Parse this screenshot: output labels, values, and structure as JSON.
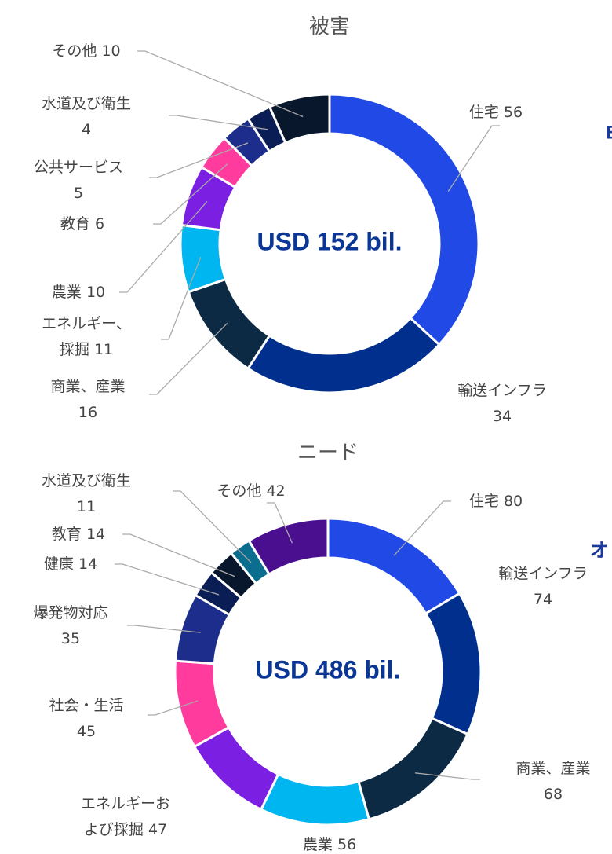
{
  "chart_data": [
    {
      "type": "donut",
      "title": "被害",
      "center_label": "USD 152 bil.",
      "categories": [
        "住宅",
        "輸送インフラ",
        "商業、産業",
        "エネルギー、採掘",
        "農業",
        "教育",
        "公共サービス",
        "水道及び衛生",
        "その他"
      ],
      "values": [
        56,
        34,
        16,
        11,
        10,
        6,
        5,
        4,
        10
      ],
      "colors": [
        "#2149e6",
        "#002f8e",
        "#0c2a44",
        "#00b6f0",
        "#7b1fe3",
        "#ff3b9e",
        "#1c2d8c",
        "#0a1e55",
        "#08172b"
      ]
    },
    {
      "type": "donut",
      "title": "ニード",
      "center_label": "USD 486 bil.",
      "categories": [
        "住宅",
        "輸送インフラ",
        "商業、産業",
        "農業",
        "エネルギーおよび採掘",
        "社会・生活",
        "爆発物対応",
        "健康",
        "教育",
        "水道及び衛生",
        "その他"
      ],
      "values": [
        80,
        74,
        68,
        56,
        47,
        45,
        35,
        14,
        14,
        11,
        42
      ],
      "colors": [
        "#2149e6",
        "#002f8e",
        "#0c2a44",
        "#00b6f0",
        "#7b1fe3",
        "#ff3b9e",
        "#1c2d8c",
        "#0a1e55",
        "#08172b",
        "#0b6e8e",
        "#4a0f8f"
      ]
    }
  ],
  "annotations": [
    "E",
    "オ"
  ]
}
